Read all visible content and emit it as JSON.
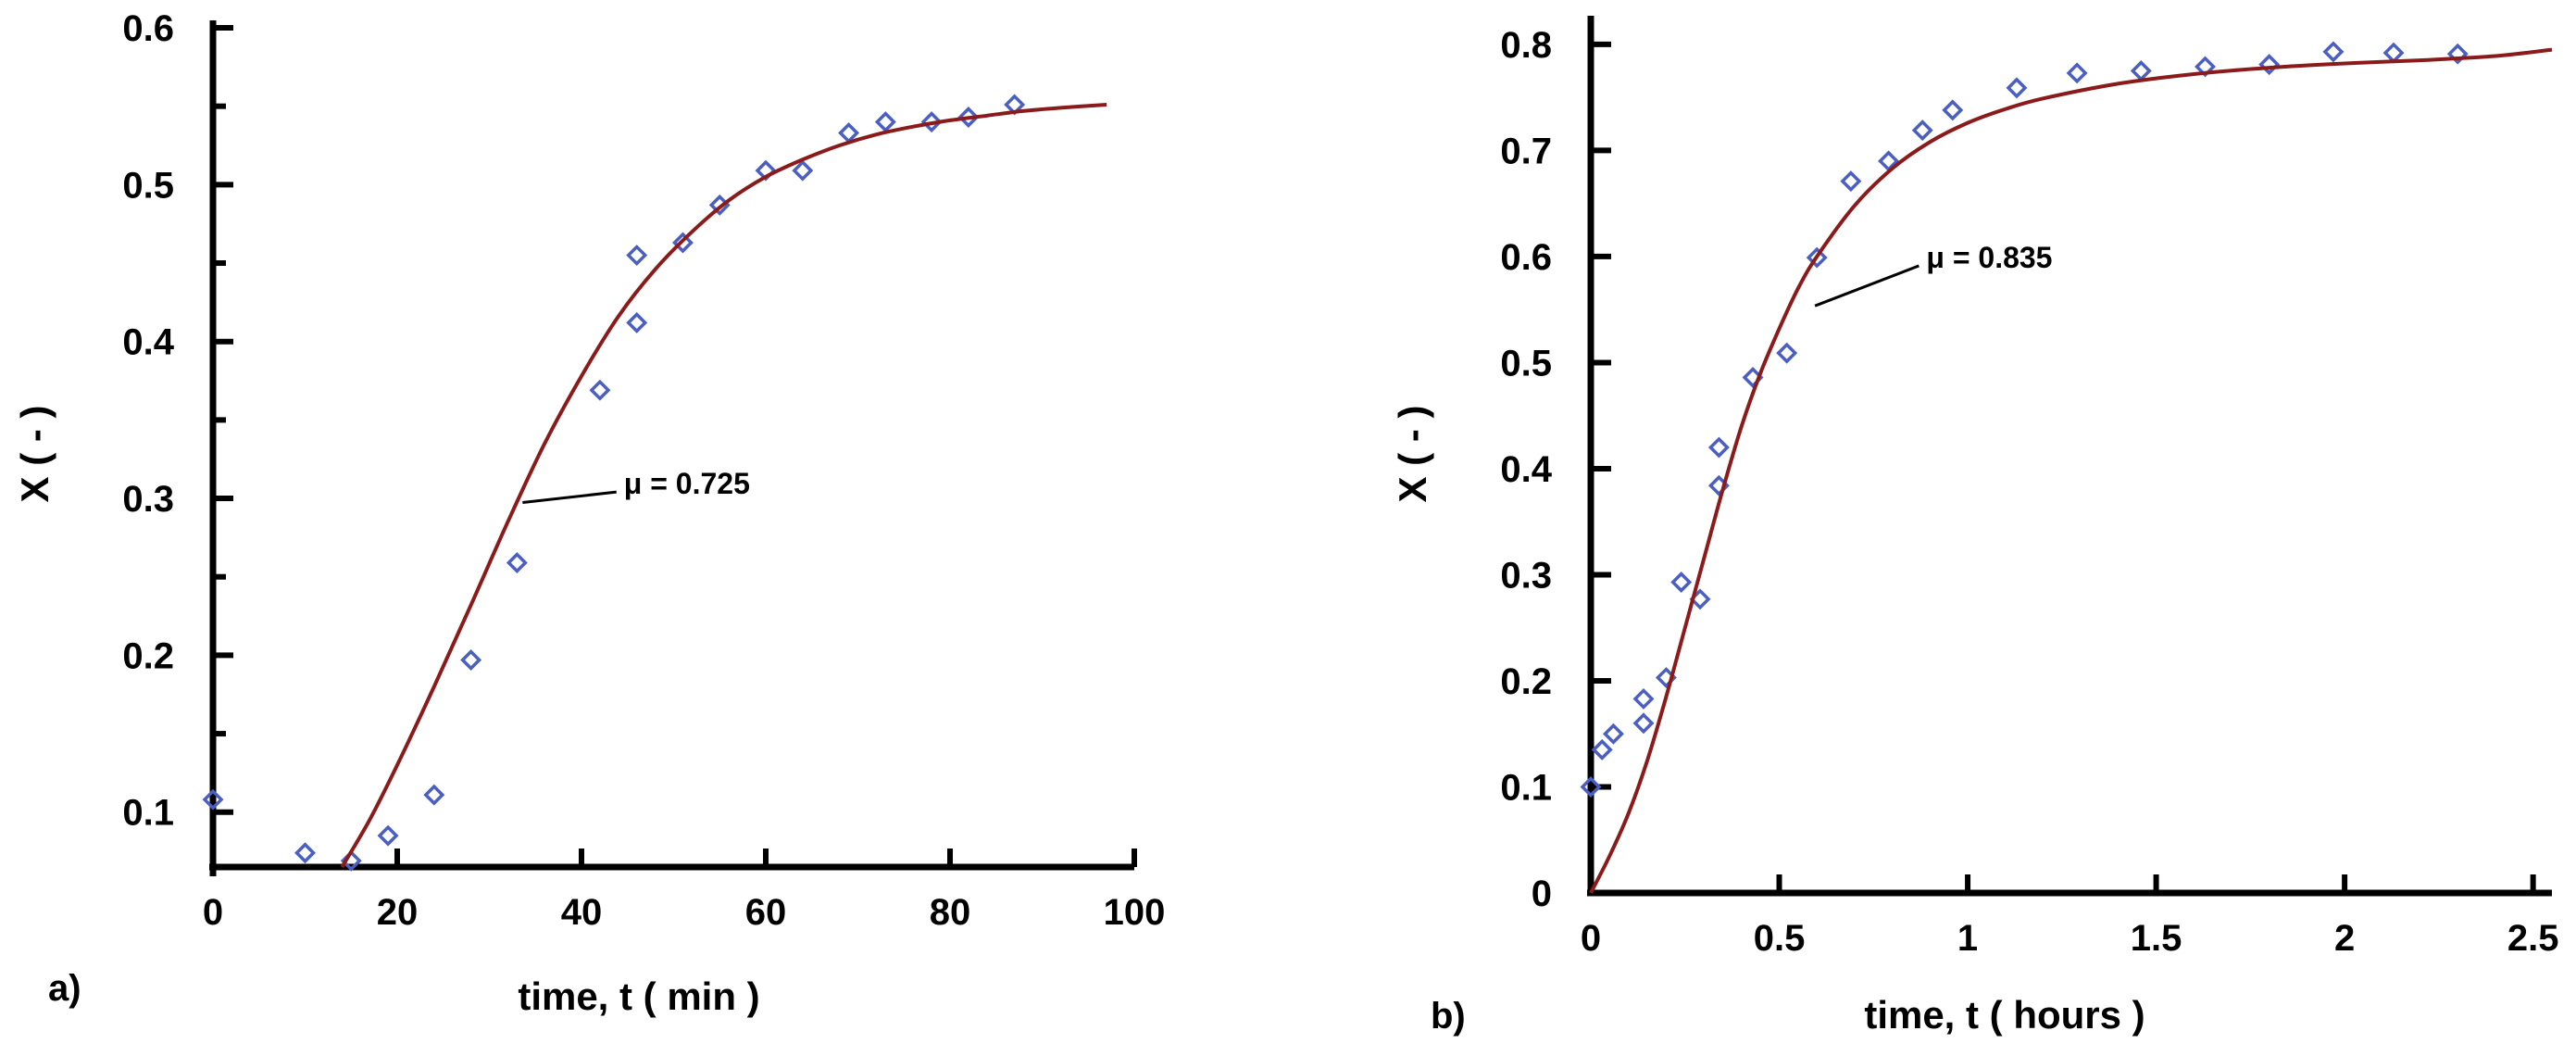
{
  "colors": {
    "curve": "#8b1a1a",
    "marker": "#4a5fc1",
    "axis": "#000000"
  },
  "chart_data": [
    {
      "type": "scatter",
      "panel_label": "a)",
      "title": "",
      "xlabel": "time, t ( min )",
      "ylabel": "X ( - )",
      "xlim": [
        0,
        100
      ],
      "ylim": [
        0.065,
        0.6
      ],
      "x_ticks": [
        0,
        20,
        40,
        60,
        80,
        100
      ],
      "x_tick_labels": [
        "0",
        "20",
        "40",
        "60",
        "80",
        "100"
      ],
      "y_ticks": [
        0.1,
        0.2,
        0.3,
        0.4,
        0.5,
        0.6
      ],
      "y_tick_labels": [
        "0.1",
        "0.2",
        "0.3",
        "0.4",
        "0.5",
        "0.6"
      ],
      "y_minor_ticks": [
        0.15,
        0.25,
        0.35,
        0.45,
        0.55
      ],
      "series": [
        {
          "name": "data",
          "kind": "markers",
          "marker": "diamond",
          "x": [
            0,
            10,
            15,
            19,
            24,
            28,
            33,
            42,
            46,
            46,
            51,
            55,
            60,
            64,
            69,
            73,
            78,
            82,
            87
          ],
          "y": [
            0.108,
            0.074,
            0.069,
            0.085,
            0.111,
            0.197,
            0.259,
            0.369,
            0.412,
            0.455,
            0.463,
            0.487,
            0.509,
            0.509,
            0.533,
            0.54,
            0.54,
            0.543,
            0.551
          ]
        },
        {
          "name": "model",
          "kind": "line",
          "x": [
            14,
            17,
            20,
            24,
            28,
            32,
            36,
            40,
            44,
            48,
            52,
            56,
            60,
            64,
            68,
            72,
            76,
            80,
            84,
            88,
            92,
            97
          ],
          "y": [
            0.065,
            0.095,
            0.13,
            0.18,
            0.232,
            0.285,
            0.335,
            0.378,
            0.416,
            0.446,
            0.47,
            0.49,
            0.505,
            0.516,
            0.525,
            0.532,
            0.537,
            0.541,
            0.544,
            0.547,
            0.549,
            0.551
          ]
        }
      ],
      "annotations": [
        {
          "text": "μ = 0.725",
          "target_x": 33,
          "target_y": 0.295,
          "text_x": 45,
          "text_y": 0.31
        }
      ]
    },
    {
      "type": "scatter",
      "panel_label": "b)",
      "title": "",
      "xlabel": "time, t ( hours )",
      "ylabel": "X ( - )",
      "xlim": [
        0,
        2.55
      ],
      "ylim": [
        0,
        0.82
      ],
      "x_ticks": [
        0,
        0.5,
        1,
        1.5,
        2,
        2.5
      ],
      "x_tick_labels": [
        "0",
        "0.5",
        "1",
        "1.5",
        "2",
        "2.5"
      ],
      "y_ticks": [
        0,
        0.1,
        0.2,
        0.3,
        0.4,
        0.5,
        0.6,
        0.7,
        0.8
      ],
      "y_tick_labels": [
        "0",
        "0.1",
        "0.2",
        "0.3",
        "0.4",
        "0.5",
        "0.6",
        "0.7",
        "0.8"
      ],
      "y_minor_ticks": [],
      "series": [
        {
          "name": "data",
          "kind": "markers",
          "marker": "diamond",
          "x": [
            0.0,
            0.03,
            0.06,
            0.14,
            0.14,
            0.2,
            0.24,
            0.29,
            0.34,
            0.34,
            0.43,
            0.52,
            0.6,
            0.69,
            0.79,
            0.88,
            0.96,
            1.13,
            1.29,
            1.46,
            1.63,
            1.8,
            1.97,
            2.13,
            2.3
          ],
          "y": [
            0.1,
            0.135,
            0.15,
            0.16,
            0.183,
            0.203,
            0.293,
            0.277,
            0.384,
            0.42,
            0.486,
            0.509,
            0.599,
            0.671,
            0.69,
            0.719,
            0.738,
            0.759,
            0.773,
            0.775,
            0.779,
            0.781,
            0.793,
            0.792,
            0.791
          ]
        },
        {
          "name": "model",
          "kind": "line",
          "x": [
            0.0,
            0.05,
            0.1,
            0.15,
            0.2,
            0.25,
            0.3,
            0.35,
            0.4,
            0.45,
            0.5,
            0.55,
            0.6,
            0.7,
            0.8,
            0.9,
            1.0,
            1.1,
            1.2,
            1.4,
            1.6,
            1.8,
            2.0,
            2.2,
            2.4,
            2.55
          ],
          "y": [
            0.0,
            0.035,
            0.075,
            0.125,
            0.185,
            0.25,
            0.315,
            0.38,
            0.44,
            0.49,
            0.532,
            0.57,
            0.6,
            0.648,
            0.683,
            0.708,
            0.726,
            0.739,
            0.749,
            0.763,
            0.772,
            0.778,
            0.782,
            0.785,
            0.789,
            0.795
          ]
        }
      ],
      "annotations": [
        {
          "text": "μ = 0.835",
          "target_x": 0.58,
          "target_y": 0.55,
          "text_x": 0.9,
          "text_y": 0.6
        }
      ]
    }
  ]
}
